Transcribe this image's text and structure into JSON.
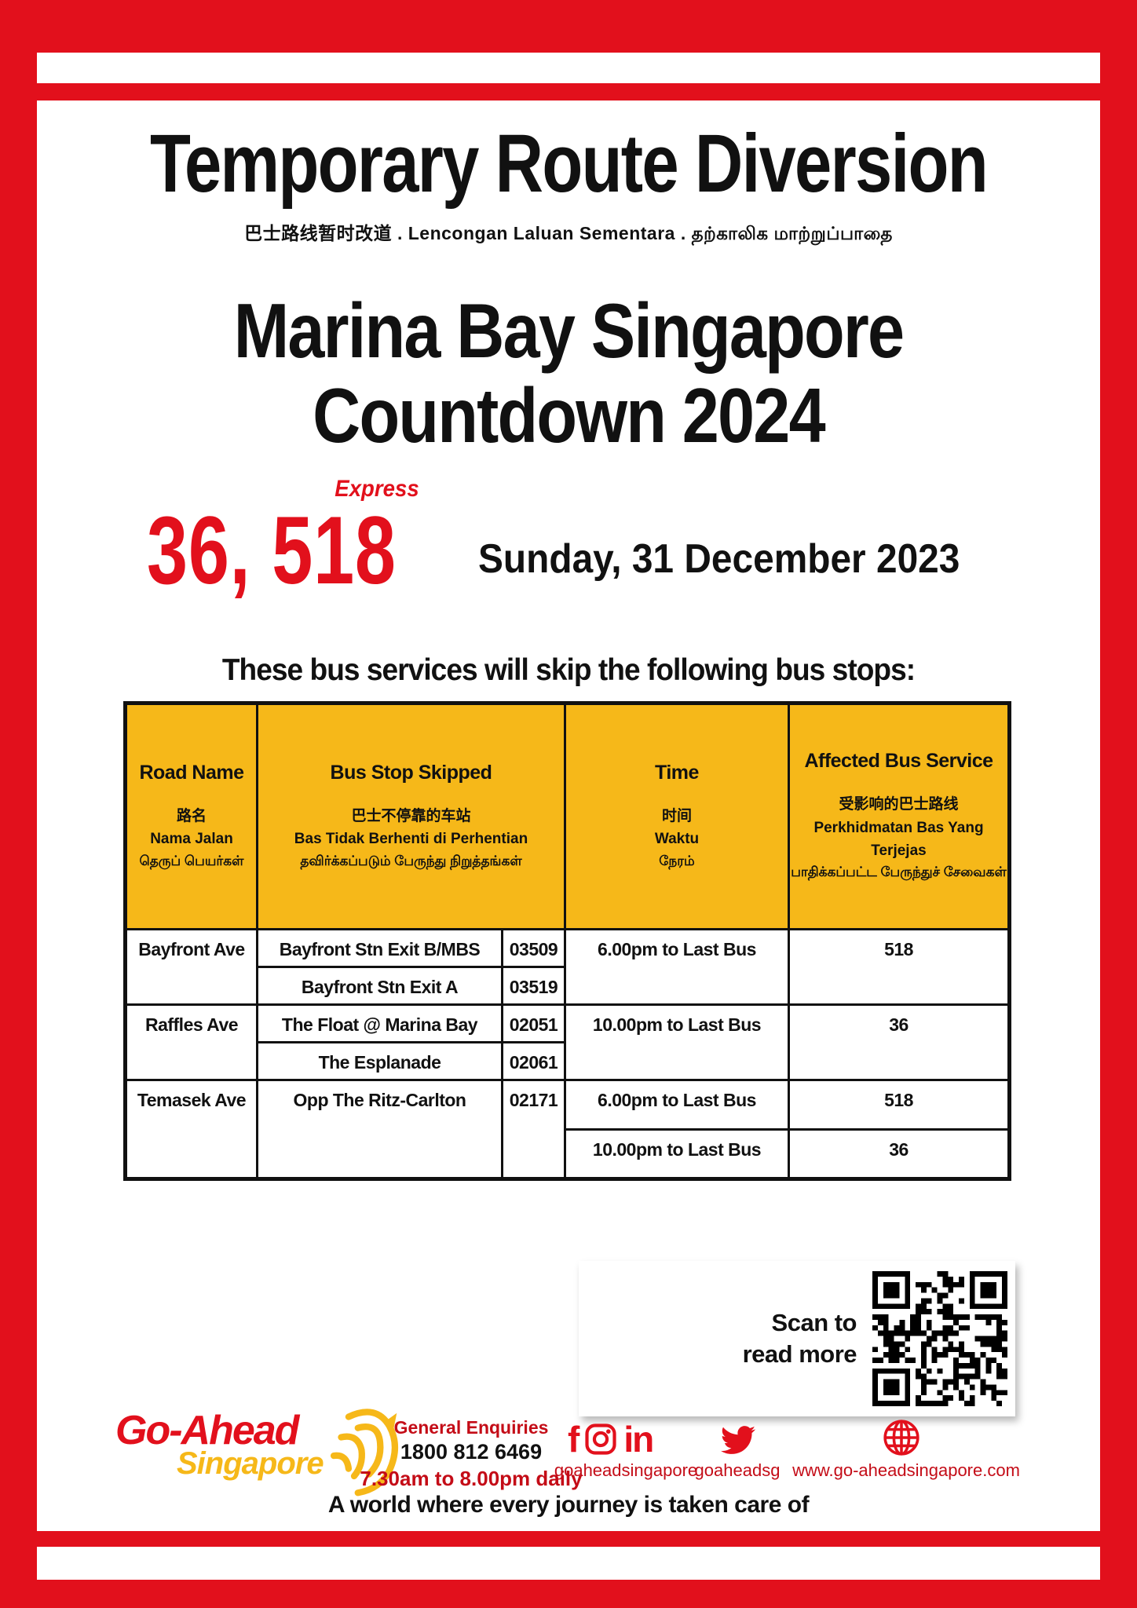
{
  "poster": {
    "title": "Temporary Route Diversion",
    "subtitle": "巴士路线暂时改道 .   Lencongan Laluan Sementara .   தற்காலிக மாற்றுப்பாதை",
    "event_line1": "Marina Bay Singapore",
    "event_line2": "Countdown 2024",
    "express_label": "Express",
    "services": "36, 518",
    "date": "Sunday, 31 December 2023",
    "notice": "These bus services will skip the following bus stops:"
  },
  "colors": {
    "red": "#e2101c",
    "yellow": "#f6b819"
  },
  "table": {
    "headers": {
      "road": {
        "en": "Road Name",
        "zh": "路名",
        "ms": "Nama Jalan",
        "ta": "தெருப் பெயர்கள்"
      },
      "stop": {
        "en": "Bus Stop Skipped",
        "zh": "巴士不停靠的车站",
        "ms": "Bas Tidak Berhenti di Perhentian",
        "ta": "தவிர்க்கப்படும் பேருந்து நிறுத்தங்கள்"
      },
      "time": {
        "en": "Time",
        "zh": "时间",
        "ms": "Waktu",
        "ta": "நேரம்"
      },
      "service": {
        "en": "Affected Bus Service",
        "zh": "受影响的巴士路线",
        "ms": "Perkhidmatan Bas Yang Terjejas",
        "ta": "பாதிக்கப்பட்ட பேருந்துச் சேவைகள்"
      }
    },
    "groups": [
      {
        "road": "Bayfront Ave",
        "stops": [
          {
            "name": "Bayfront Stn Exit B/MBS",
            "code": "03509"
          },
          {
            "name": "Bayfront Stn Exit A",
            "code": "03519"
          }
        ],
        "time": "6.00pm to Last Bus",
        "service": "518"
      },
      {
        "road": "Raffles Ave",
        "stops": [
          {
            "name": "The Float @ Marina Bay",
            "code": "02051"
          },
          {
            "name": "The Esplanade",
            "code": "02061"
          }
        ],
        "time": "10.00pm to Last Bus",
        "service": "36"
      },
      {
        "road": "Temasek Ave",
        "stops": [
          {
            "name": "Opp The Ritz-Carlton",
            "code": "02171"
          }
        ],
        "slots": [
          {
            "time": "6.00pm to Last Bus",
            "service": "518"
          },
          {
            "time": "10.00pm to Last Bus",
            "service": "36"
          }
        ]
      }
    ]
  },
  "qr": {
    "line1": "Scan to",
    "line2": "read more"
  },
  "footer": {
    "logo": {
      "line1": "Go-Ahead",
      "line2": "Singapore"
    },
    "enquiries": {
      "label": "General Enquiries",
      "phone": "1800 812 6469",
      "hours": "7.30am to 8.00pm daily"
    },
    "social": {
      "handle_main": "goaheadsingapore",
      "handle_twitter": "goaheadsg",
      "website": "www.go-aheadsingapore.com"
    },
    "tagline": "A world where every journey is taken care of"
  }
}
